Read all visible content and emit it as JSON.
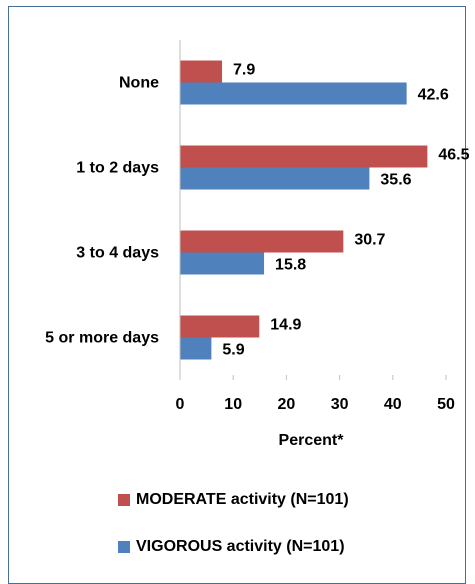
{
  "chart_data": {
    "type": "bar",
    "orientation": "horizontal",
    "categories": [
      "None",
      "1 to 2 days",
      "3 to 4 days",
      "5 or more days"
    ],
    "series": [
      {
        "name": "MODERATE activity (N=101)",
        "values": [
          7.9,
          46.5,
          30.7,
          14.9
        ],
        "color": "#c0504d"
      },
      {
        "name": "VIGOROUS activity (N=101)",
        "values": [
          42.6,
          35.6,
          15.8,
          5.9
        ],
        "color": "#4f81bd"
      }
    ],
    "xlabel": "Percent*",
    "xlim": [
      0,
      50
    ],
    "xticks": [
      0,
      10,
      20,
      30,
      40,
      50
    ],
    "grid": false,
    "legend_position": "bottom"
  }
}
